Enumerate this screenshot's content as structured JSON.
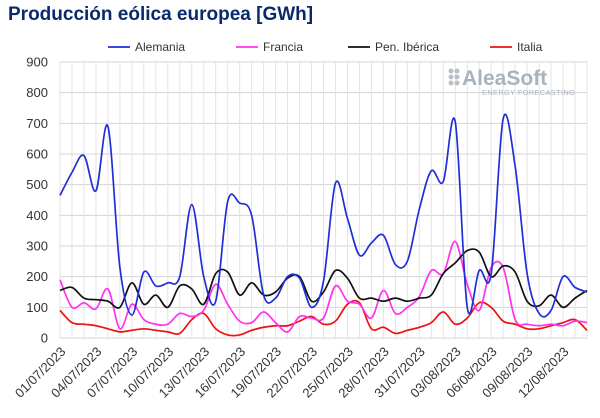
{
  "chart_data": {
    "type": "line",
    "title": "Producción eólica europea [GWh]",
    "xlabel": "",
    "ylabel": "",
    "ylim": [
      0,
      900
    ],
    "yticks": [
      0,
      100,
      200,
      300,
      400,
      500,
      600,
      700,
      800,
      900
    ],
    "x_start": "2023-07-01",
    "x_end": "2023-08-15",
    "grid": true,
    "legend_position": "top",
    "tick_labels": [
      "01/07/2023",
      "04/07/2023",
      "07/07/2023",
      "10/07/2023",
      "13/07/2023",
      "16/07/2023",
      "19/07/2023",
      "22/07/2023",
      "25/07/2023",
      "28/07/2023",
      "31/07/2023",
      "03/08/2023",
      "06/08/2023",
      "09/08/2023",
      "12/08/2023"
    ],
    "series": [
      {
        "name": "Alemania",
        "color": "#1f2fd6",
        "values": [
          465,
          540,
          595,
          480,
          690,
          230,
          75,
          215,
          170,
          180,
          200,
          435,
          200,
          120,
          445,
          440,
          400,
          140,
          130,
          200,
          195,
          100,
          185,
          505,
          390,
          270,
          310,
          335,
          240,
          250,
          420,
          545,
          510,
          705,
          100,
          220,
          210,
          715,
          560,
          210,
          80,
          90,
          200,
          165,
          150
        ]
      },
      {
        "name": "Francia",
        "color": "#ff33ee",
        "values": [
          190,
          100,
          115,
          95,
          160,
          30,
          110,
          60,
          45,
          45,
          80,
          70,
          90,
          175,
          110,
          55,
          50,
          85,
          50,
          20,
          70,
          65,
          65,
          170,
          120,
          110,
          65,
          155,
          80,
          100,
          135,
          220,
          210,
          315,
          175,
          90,
          230,
          230,
          60,
          45,
          40,
          45,
          40,
          55,
          50
        ]
      },
      {
        "name": "Pen. Ibérica",
        "color": "#111111",
        "values": [
          155,
          165,
          130,
          125,
          120,
          100,
          180,
          110,
          140,
          100,
          170,
          160,
          110,
          210,
          215,
          140,
          180,
          140,
          150,
          195,
          200,
          120,
          150,
          220,
          195,
          130,
          130,
          120,
          130,
          120,
          130,
          140,
          210,
          245,
          285,
          280,
          200,
          235,
          215,
          120,
          105,
          140,
          100,
          130,
          155
        ]
      },
      {
        "name": "Italia",
        "color": "#ee1111",
        "values": [
          90,
          50,
          45,
          40,
          30,
          20,
          25,
          30,
          25,
          20,
          15,
          60,
          80,
          30,
          10,
          10,
          25,
          35,
          40,
          40,
          55,
          70,
          45,
          55,
          110,
          115,
          30,
          35,
          15,
          25,
          35,
          50,
          85,
          45,
          65,
          115,
          100,
          55,
          45,
          30,
          30,
          40,
          50,
          60,
          25
        ]
      }
    ]
  },
  "watermark": {
    "brand": "AleaSoft",
    "tagline": "ENERGY FORECASTING"
  }
}
